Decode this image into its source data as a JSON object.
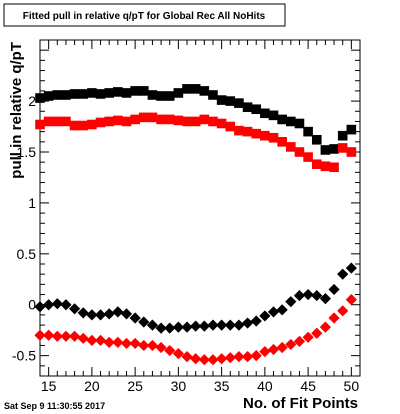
{
  "chart_data": {
    "type": "scatter",
    "title": "Fitted pull in relative q/pT for Global Rec All NoHits",
    "xlabel": "No. of Fit Points",
    "ylabel": "pull in relative q/pT",
    "timestamp": "Sat Sep  9 11:30:55 2017",
    "xlim": [
      14,
      51
    ],
    "ylim": [
      -0.7,
      2.6
    ],
    "x_ticks": [
      15,
      20,
      25,
      30,
      35,
      40,
      45,
      50
    ],
    "y_ticks": [
      -0.5,
      0,
      0.5,
      1,
      1.5,
      2
    ],
    "x_tick_labels": [
      "15",
      "20",
      "25",
      "30",
      "35",
      "40",
      "45",
      "50"
    ],
    "y_tick_labels": [
      "-0.5",
      "0",
      "0.5",
      "1",
      "1.5",
      "2"
    ],
    "grid": false,
    "legend": "none",
    "series": [
      {
        "marker": "square",
        "color": "#000000",
        "x": [
          14,
          15,
          16,
          17,
          18,
          19,
          20,
          21,
          22,
          23,
          24,
          25,
          26,
          27,
          28,
          29,
          30,
          31,
          32,
          33,
          34,
          35,
          36,
          37,
          38,
          39,
          40,
          41,
          42,
          43,
          44,
          45,
          46,
          47,
          48,
          49,
          50
        ],
        "values": [
          2.03,
          2.05,
          2.06,
          2.06,
          2.07,
          2.07,
          2.08,
          2.07,
          2.08,
          2.09,
          2.08,
          2.1,
          2.1,
          2.06,
          2.05,
          2.05,
          2.08,
          2.12,
          2.12,
          2.1,
          2.06,
          2.01,
          2.0,
          1.98,
          1.94,
          1.92,
          1.88,
          1.86,
          1.82,
          1.8,
          1.78,
          1.7,
          1.62,
          1.52,
          1.53,
          1.66,
          1.72
        ]
      },
      {
        "marker": "square",
        "color": "#ff0000",
        "x": [
          14,
          15,
          16,
          17,
          18,
          19,
          20,
          21,
          22,
          23,
          24,
          25,
          26,
          27,
          28,
          29,
          30,
          31,
          32,
          33,
          34,
          35,
          36,
          37,
          38,
          39,
          40,
          41,
          42,
          43,
          44,
          45,
          46,
          47,
          48,
          49,
          50
        ],
        "values": [
          1.77,
          1.8,
          1.8,
          1.8,
          1.76,
          1.76,
          1.77,
          1.79,
          1.8,
          1.81,
          1.8,
          1.82,
          1.84,
          1.84,
          1.82,
          1.82,
          1.81,
          1.8,
          1.8,
          1.82,
          1.8,
          1.78,
          1.75,
          1.71,
          1.7,
          1.68,
          1.66,
          1.64,
          1.6,
          1.55,
          1.5,
          1.45,
          1.38,
          1.36,
          1.35,
          1.54,
          1.5
        ]
      },
      {
        "marker": "diamond",
        "color": "#000000",
        "x": [
          14,
          15,
          16,
          17,
          18,
          19,
          20,
          21,
          22,
          23,
          24,
          25,
          26,
          27,
          28,
          29,
          30,
          31,
          32,
          33,
          34,
          35,
          36,
          37,
          38,
          39,
          40,
          41,
          42,
          43,
          44,
          45,
          46,
          47,
          48,
          49,
          50
        ],
        "values": [
          -0.02,
          0.0,
          0.01,
          0.0,
          -0.04,
          -0.08,
          -0.1,
          -0.1,
          -0.09,
          -0.07,
          -0.09,
          -0.13,
          -0.17,
          -0.2,
          -0.23,
          -0.23,
          -0.22,
          -0.22,
          -0.21,
          -0.21,
          -0.2,
          -0.2,
          -0.2,
          -0.2,
          -0.18,
          -0.16,
          -0.11,
          -0.07,
          -0.05,
          0.03,
          0.09,
          0.1,
          0.09,
          0.06,
          0.15,
          0.3,
          0.36
        ]
      },
      {
        "marker": "diamond",
        "color": "#ff0000",
        "x": [
          14,
          15,
          16,
          17,
          18,
          19,
          20,
          21,
          22,
          23,
          24,
          25,
          26,
          27,
          28,
          29,
          30,
          31,
          32,
          33,
          34,
          35,
          36,
          37,
          38,
          39,
          40,
          41,
          42,
          43,
          44,
          45,
          46,
          47,
          48,
          49,
          50
        ],
        "values": [
          -0.3,
          -0.3,
          -0.31,
          -0.31,
          -0.31,
          -0.33,
          -0.35,
          -0.35,
          -0.37,
          -0.37,
          -0.38,
          -0.38,
          -0.4,
          -0.4,
          -0.42,
          -0.45,
          -0.48,
          -0.51,
          -0.53,
          -0.54,
          -0.54,
          -0.53,
          -0.52,
          -0.51,
          -0.51,
          -0.5,
          -0.46,
          -0.44,
          -0.42,
          -0.39,
          -0.36,
          -0.32,
          -0.28,
          -0.22,
          -0.13,
          -0.06,
          0.05
        ]
      }
    ]
  }
}
